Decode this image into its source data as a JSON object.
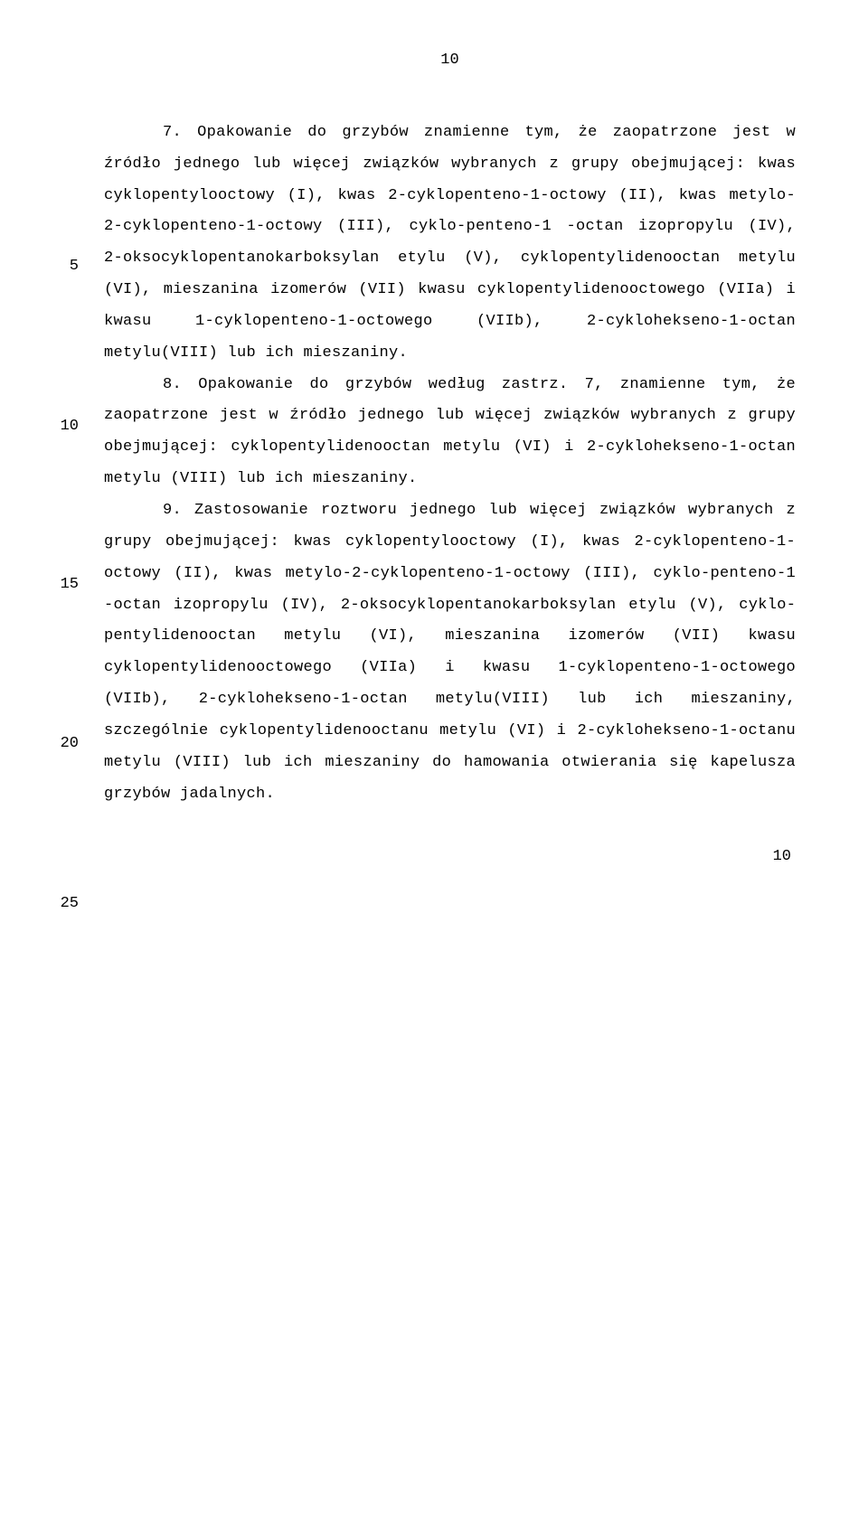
{
  "page_number_top": "10",
  "page_number_bottom": "10",
  "line_numbers": {
    "n1": "5",
    "n2": "10",
    "n3": "15",
    "n4": "20",
    "n5": "25"
  },
  "paragraphs": {
    "p7": "7. Opakowanie do grzybów znamienne tym, że zaopa­trzone jest w źródło jednego lub więcej związków wybra­nych z grupy obejmującej: kwas cyklopentylooctowy (I), kwas 2-cyklopenteno-1-octowy (II), kwas metylo-2-cyklopenteno-1-octowy (III), cyklo-penteno-1 -octan izopropylu (IV), 2-oksocyklopentanokarboksylan etylu (V), cyklopentylidenooctan metylu (VI), mieszanina izomerów (VII) kwasu cyklopentylide­nooctowego (VIIa) i kwasu 1-cyklopenteno-1-octowego (VIIb), 2-cyklohekseno-1-octan metylu(VIII) lub ich mieszaniny.",
    "p8": "8. Opakowanie do grzybów według zastrz. 7, znamienne tym, że zaopatrzone jest w źródło jednego lub więcej związków wybranych z grupy obejmującej: cyklopentylideno­octan metylu (VI) i 2-cyklohekseno-1-octan metylu (VIII) lub ich mieszaniny.",
    "p9": "9. Zastosowanie roztworu jednego lub więcej związków wybranych z grupy obejmującej: kwas cyklopentylooctowy (I), kwas 2-cyklopenteno-1-octowy (II), kwas metylo-2-cyklopenteno-1-octowy (III), cyklo-penteno-1 -octan izopro­pylu (IV), 2-oksocyklopentanokarboksylan etylu (V), cyklo­pentylidenooctan metylu (VI), mieszanina izomerów (VII) kwa­su cyklopentylidenooctowego (VIIa) i kwasu 1-cyklopenteno-1-octowego (VIIb), 2-cyklohekseno-1-octan metylu(VIII) lub ich mieszaniny, szczególnie cyklopentylidenooctanu metylu (VI) i 2-cyklohekseno-1-octanu metylu (VIII) lub ich mie­szaniny do hamowania otwierania się kapelusza grzybów ja­dalnych."
  },
  "line_num_positions": {
    "n1": 278,
    "n2": 455,
    "n3": 630,
    "n4": 806,
    "n5": 983
  }
}
